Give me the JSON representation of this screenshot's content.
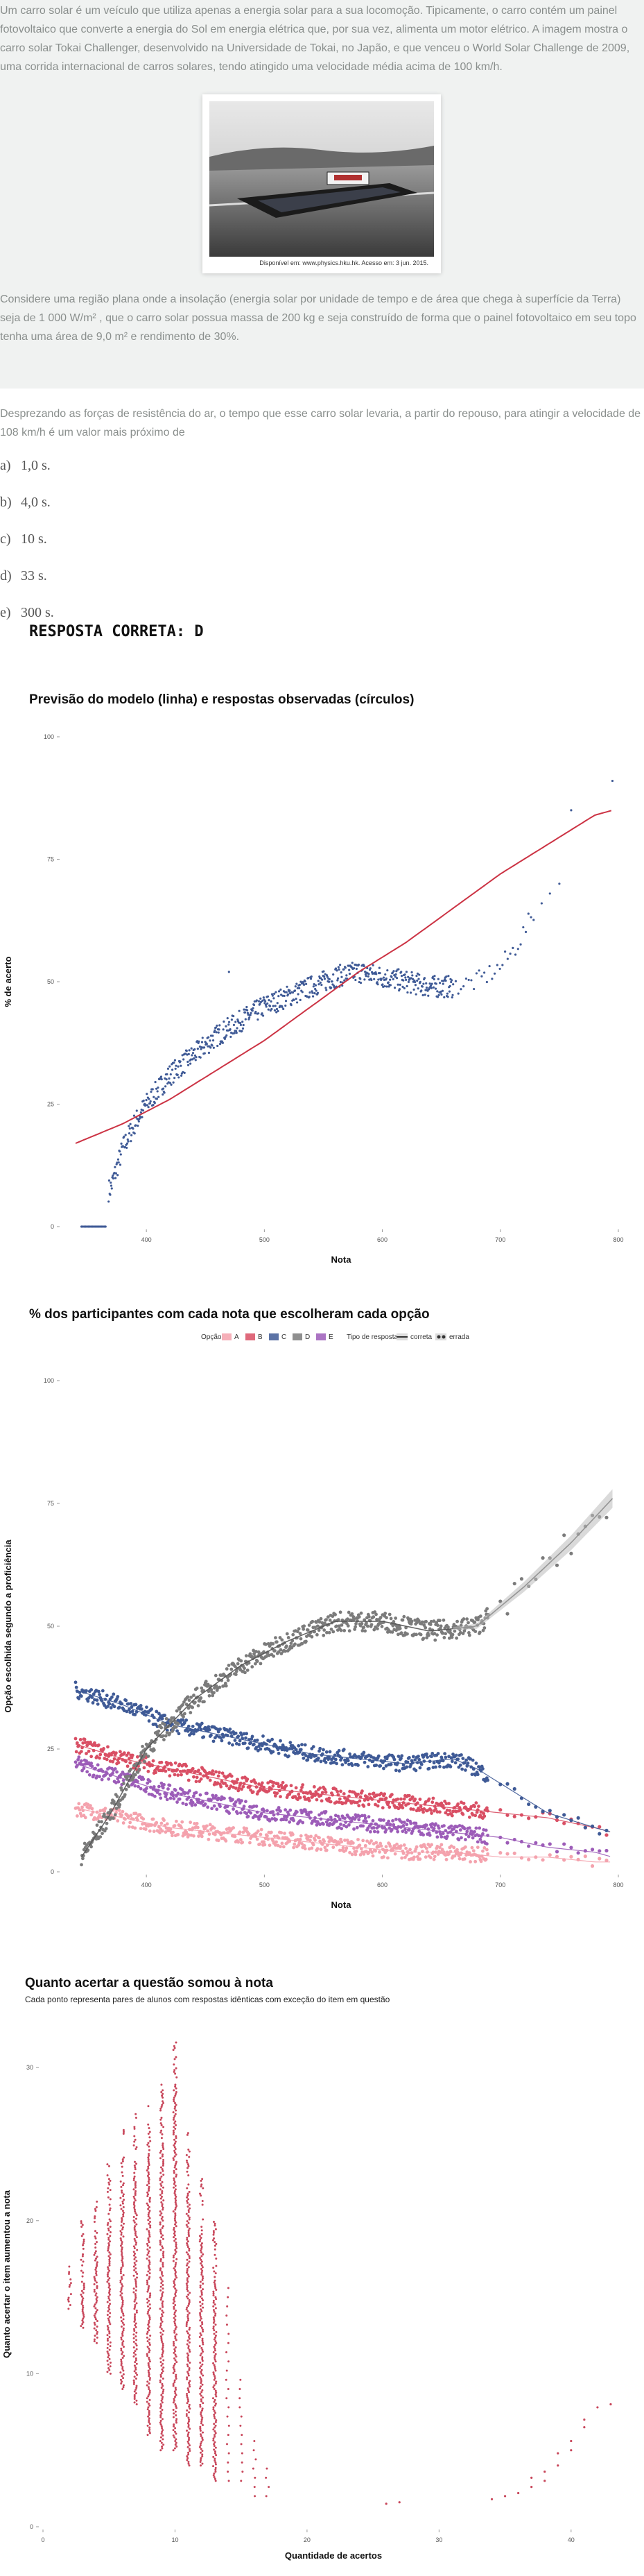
{
  "question": {
    "paragraph1": "Um carro solar é um veículo que utiliza apenas a energia solar para a sua locomoção. Tipicamente, o carro contém um painel fotovoltaico que converte a energia do Sol em energia elétrica que, por sua vez, alimenta um motor elétrico. A imagem mostra o carro solar Tokai Challenger, desenvolvido na Universidade de Tokai, no Japão, e que venceu o World Solar Challenge de 2009, uma corrida internacional de carros solares, tendo atingido uma velocidade média acima de 100 km/h.",
    "image_caption": "Disponível em: www.physics.hku.hk. Acesso em: 3 jun. 2015.",
    "paragraph2": "Considere uma região plana onde a insolação (energia solar por unidade de tempo e de área que chega à superfície da Terra) seja de 1 000 W/m² , que o carro solar possua massa de 200 kg e seja construído de forma que o painel fotovoltaico em seu topo tenha uma área de 9,0 m² e rendimento de 30%.",
    "paragraph3": "Desprezando as forças de resistência do ar, o tempo que esse carro solar levaria, a partir do repouso, para atingir a velocidade de 108 km/h é um valor mais próximo de",
    "alternatives": [
      {
        "letter": "a)",
        "text": "1,0 s."
      },
      {
        "letter": "b)",
        "text": "4,0 s."
      },
      {
        "letter": "c)",
        "text": "10 s."
      },
      {
        "letter": "d)",
        "text": "33 s."
      },
      {
        "letter": "e)",
        "text": "300 s."
      }
    ],
    "correct_answer": "RESPOSTA CORRETA: D"
  },
  "chart_data": [
    {
      "type": "scatter",
      "title": "Previsão do modelo (linha) e respostas observadas (círculos)",
      "xlabel": "Nota",
      "ylabel": "% de acerto",
      "x_ticks": [
        "400",
        "500",
        "600",
        "700",
        "800"
      ],
      "y_ticks": [
        "0",
        "25",
        "50",
        "75",
        "100"
      ],
      "xlim": [
        330,
        800
      ],
      "ylim": [
        0,
        100
      ],
      "colors": {
        "points": "#3f5a96",
        "line": "#cc3344"
      },
      "observed_points": {
        "x": [
          345,
          370,
          380,
          390,
          400,
          420,
          440,
          460,
          480,
          500,
          520,
          540,
          560,
          580,
          600,
          620,
          640,
          660,
          680,
          700,
          710,
          720,
          730,
          750,
          760,
          795
        ],
        "y": [
          0,
          8,
          16,
          21,
          25,
          31,
          35,
          39,
          42,
          45,
          47,
          49,
          51,
          52,
          51,
          50,
          49,
          49,
          50,
          53,
          56,
          60,
          65,
          70,
          85,
          91
        ]
      },
      "model_line": {
        "x": [
          340,
          380,
          420,
          460,
          500,
          540,
          580,
          620,
          660,
          700,
          740,
          780,
          795
        ],
        "y": [
          17,
          21,
          26,
          32,
          38,
          45,
          52,
          58,
          65,
          72,
          78,
          84,
          85
        ]
      }
    },
    {
      "type": "scatter",
      "title": "% dos participantes com cada nota que escolheram cada opção",
      "xlabel": "Nota",
      "ylabel": "Opção escolhida segundo a proficiência",
      "legend": {
        "option_title": "Opção",
        "options": [
          {
            "label": "A",
            "color": "#f4a2ad"
          },
          {
            "label": "B",
            "color": "#d94f64"
          },
          {
            "label": "C",
            "color": "#3f5a96"
          },
          {
            "label": "D",
            "color": "#7b7b7b"
          },
          {
            "label": "E",
            "color": "#9c5cb8"
          }
        ],
        "type_title": "Tipo de resposta",
        "types": [
          "correta",
          "errada"
        ]
      },
      "x_ticks": [
        "400",
        "500",
        "600",
        "700",
        "800"
      ],
      "y_ticks": [
        "0",
        "25",
        "50",
        "75",
        "100"
      ],
      "xlim": [
        330,
        800
      ],
      "ylim": [
        0,
        100
      ],
      "series": [
        {
          "name": "A",
          "x": [
            340,
            380,
            420,
            460,
            500,
            540,
            580,
            620,
            660,
            700,
            740,
            780,
            795
          ],
          "y": [
            13,
            11,
            9,
            8,
            7,
            6,
            5,
            4,
            4,
            3,
            3,
            2,
            2
          ]
        },
        {
          "name": "B",
          "x": [
            340,
            380,
            420,
            460,
            500,
            540,
            580,
            620,
            660,
            700,
            740,
            780,
            795
          ],
          "y": [
            26,
            23,
            21,
            19,
            17,
            16,
            15,
            14,
            13,
            12,
            11,
            9,
            8
          ]
        },
        {
          "name": "C",
          "x": [
            340,
            380,
            420,
            460,
            500,
            540,
            580,
            620,
            660,
            680,
            700,
            740,
            780,
            795
          ],
          "y": [
            37,
            34,
            30,
            28,
            26,
            24,
            23,
            22,
            23,
            21,
            18,
            12,
            9,
            8
          ]
        },
        {
          "name": "D",
          "x": [
            345,
            370,
            400,
            440,
            480,
            520,
            560,
            600,
            640,
            680,
            720,
            760,
            795
          ],
          "y": [
            3,
            12,
            25,
            35,
            42,
            47,
            51,
            51,
            49,
            50,
            58,
            67,
            76
          ]
        },
        {
          "name": "E",
          "x": [
            340,
            380,
            420,
            460,
            500,
            540,
            580,
            620,
            660,
            700,
            740,
            780,
            795
          ],
          "y": [
            22,
            19,
            16,
            14,
            12,
            11,
            10,
            9,
            8,
            7,
            5,
            4,
            3
          ]
        }
      ]
    },
    {
      "type": "scatter",
      "title": "Quanto acertar a questão somou à nota",
      "subtitle": "Cada ponto representa pares de alunos com respostas idênticas com exceção do item em questão",
      "xlabel": "Quantidade de acertos",
      "ylabel": "Quanto acertar o item aumentou a nota",
      "x_ticks": [
        "0",
        "10",
        "20",
        "30",
        "40"
      ],
      "y_ticks": [
        "0",
        "10",
        "20",
        "30"
      ],
      "xlim": [
        0,
        44
      ],
      "ylim": [
        0,
        33
      ],
      "colors": {
        "points": "#c8465a"
      },
      "ranges_by_hits": {
        "x": [
          2,
          3,
          4,
          5,
          6,
          7,
          8,
          9,
          10,
          11,
          12,
          13,
          14,
          15,
          16,
          17
        ],
        "y_min": [
          14,
          13,
          12,
          10,
          9,
          8,
          6,
          5,
          5,
          4,
          4,
          3,
          3,
          3,
          2,
          2
        ],
        "y_max": [
          17,
          20,
          22,
          24,
          26,
          27,
          28,
          29,
          32,
          26,
          23,
          20,
          16,
          10,
          6,
          4
        ]
      },
      "sparse_points": {
        "x": [
          26,
          27,
          34,
          35,
          36,
          37,
          37,
          38,
          38,
          39,
          39,
          40,
          40,
          41,
          41,
          42,
          43
        ],
        "y": [
          1.5,
          1.6,
          1.8,
          2.0,
          2.2,
          2.6,
          3.2,
          3.0,
          3.6,
          4.0,
          4.8,
          5.0,
          5.6,
          6.5,
          7.0,
          7.8,
          8.0
        ]
      }
    }
  ]
}
